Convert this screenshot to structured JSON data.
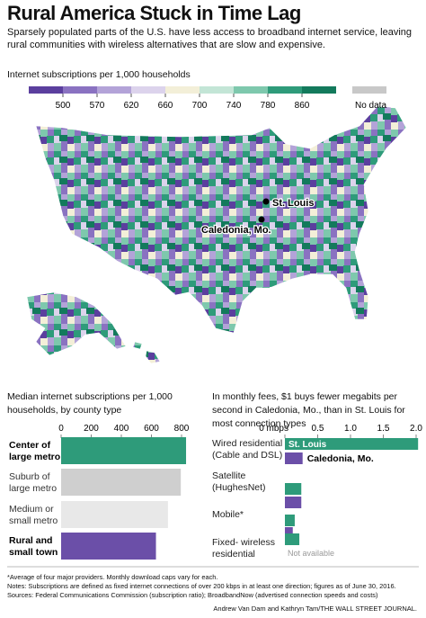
{
  "header": {
    "title": "Rural America Stuck in Time Lag",
    "subtitle": "Sparsely populated parts of the U.S. have less access to broadband internet service, leaving rural communities with wireless alternatives that are slow and expensive."
  },
  "legend": {
    "title": "Internet subscriptions per 1,000 households",
    "ticks": [
      500,
      570,
      620,
      660,
      700,
      740,
      780,
      860
    ],
    "colors": [
      "#5b3f9e",
      "#8a72c1",
      "#b3a3d8",
      "#dcd3ec",
      "#f3efd8",
      "#c3e5d6",
      "#7ec8ad",
      "#2e9b7a",
      "#137a5c"
    ],
    "no_data": "No data",
    "no_data_color": "#c8c8c8"
  },
  "map": {
    "labels": [
      "St. Louis",
      "Caledonia, Mo."
    ]
  },
  "chart_data": [
    {
      "type": "bar",
      "orientation": "horizontal",
      "title": "Median internet subscriptions per 1,000 households, by county type",
      "categories": [
        "Center of large metro",
        "Suburb of large metro",
        "Medium or small metro",
        "Rural and small town"
      ],
      "values": [
        830,
        795,
        710,
        630
      ],
      "colors": [
        "#2e9b7a",
        "#cfcfcf",
        "#e8e8e8",
        "#6b4fa8"
      ],
      "xlim": [
        0,
        800
      ],
      "xticks": [
        0,
        200,
        400,
        600,
        800
      ]
    },
    {
      "type": "grouped_bar",
      "orientation": "horizontal",
      "title": "In monthly fees, $1 buys fewer megabits per second in Caledonia, Mo., than in St. Louis for most connection types",
      "categories": [
        "Wired residential\n(Cable and DSL)",
        "Satellite\n(HughesNet)",
        "Mobile*",
        "Fixed- wireless\nresidential"
      ],
      "series": [
        {
          "name": "St. Louis",
          "color": "#2e9b7a",
          "values": [
            2.03,
            0.25,
            0.15,
            0.22
          ]
        },
        {
          "name": "Caledonia, Mo.",
          "color": "#6b4fa8",
          "values": [
            0.27,
            0.25,
            0.12,
            null
          ]
        }
      ],
      "annotations": [
        "Not available"
      ],
      "xlim": [
        0,
        2.0
      ],
      "xticks": [
        {
          "value": 0,
          "label": "0 mbps"
        },
        0.5,
        {
          "value": 1.0,
          "label": "1.0"
        },
        1.5,
        {
          "value": 2.0,
          "label": "2.0"
        }
      ]
    }
  ],
  "notes": [
    "*Average of four major providers. Monthly download caps vary for each.",
    "Notes: Subscriptions are defined as fixed internet connections of over 200 kbps  in at least one direction; figures as of June 30, 2016.",
    "Sources: Federal Communications Commission (subscription ratio); BroadbandNow (advertised connection speeds and costs)"
  ],
  "credit": "Andrew Van Dam and Kathryn Tam/THE WALL STREET JOURNAL."
}
